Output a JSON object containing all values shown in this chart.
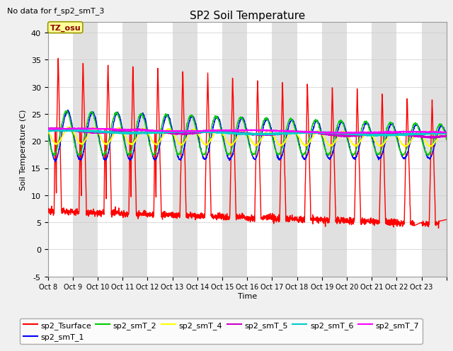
{
  "title": "SP2 Soil Temperature",
  "subtitle": "No data for f_sp2_smT_3",
  "ylabel": "Soil Temperature (C)",
  "xlabel": "Time",
  "tz_label": "TZ_osu",
  "ylim": [
    -5,
    42
  ],
  "yticks": [
    -5,
    0,
    5,
    10,
    15,
    20,
    25,
    30,
    35,
    40
  ],
  "x_tick_labels": [
    "Oct 8",
    "Oct 9",
    "Oct 10",
    "Oct 11",
    "Oct 12",
    "Oct 13",
    "Oct 14",
    "Oct 15",
    "Oct 16",
    "Oct 17",
    "Oct 18",
    "Oct 19",
    "Oct 20",
    "Oct 21",
    "Oct 22",
    "Oct 23"
  ],
  "series_order": [
    "sp2_Tsurface",
    "sp2_smT_1",
    "sp2_smT_2",
    "sp2_smT_4",
    "sp2_smT_5",
    "sp2_smT_6",
    "sp2_smT_7"
  ],
  "series": {
    "sp2_Tsurface": {
      "color": "#ff0000",
      "lw": 1.0
    },
    "sp2_smT_1": {
      "color": "#0000ff",
      "lw": 1.0
    },
    "sp2_smT_2": {
      "color": "#00cc00",
      "lw": 1.0
    },
    "sp2_smT_4": {
      "color": "#ffff00",
      "lw": 1.2
    },
    "sp2_smT_5": {
      "color": "#cc00cc",
      "lw": 1.8
    },
    "sp2_smT_6": {
      "color": "#00cccc",
      "lw": 1.8
    },
    "sp2_smT_7": {
      "color": "#ff00ff",
      "lw": 1.2
    }
  },
  "bg_color": "#f0f0f0",
  "n_days": 16,
  "points_per_day": 144,
  "legend_entries": [
    "sp2_Tsurface",
    "sp2_smT_1",
    "sp2_smT_2",
    "sp2_smT_4",
    "sp2_smT_5",
    "sp2_smT_6",
    "sp2_smT_7"
  ]
}
